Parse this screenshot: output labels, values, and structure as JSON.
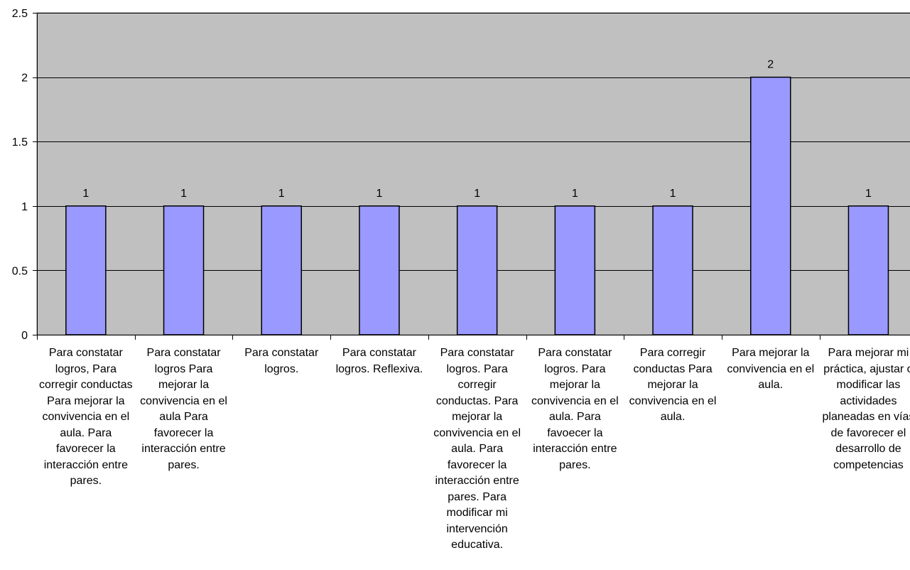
{
  "chart_data": {
    "type": "bar",
    "title": "",
    "xlabel": "",
    "ylabel": "",
    "ylim": [
      0,
      2.5
    ],
    "yticks": [
      "0",
      "0.5",
      "1",
      "1.5",
      "2",
      "2.5"
    ],
    "grid": true,
    "legend": "none",
    "colors": {
      "plot_background": "#c0c0c0",
      "bar_fill": "#9999ff",
      "bar_stroke": "#000000",
      "gridline": "#000000"
    },
    "categories": [
      "Para constatar logros, Para corregir conductas Para mejorar la convivencia en el aula. Para favorecer la interacción entre pares.",
      "Para constatar logros Para mejorar la convivencia en el aula Para favorecer la interacción entre pares.",
      "Para constatar logros.",
      "Para constatar logros. Reflexiva.",
      "Para constatar logros. Para corregir conductas. Para mejorar la convivencia en el aula. Para favorecer la interacción entre pares. Para modificar mi intervención educativa.",
      "Para constatar logros. Para mejorar la convivencia en el aula. Para favoecer  la interacción entre pares.",
      "Para corregir conductas Para mejorar la convivencia en el aula.",
      "Para mejorar la convivencia en el aula.",
      "Para mejorar mi práctica, ajustar o modificar las actividades planeadas en vías de favorecer el desarrollo de competencias"
    ],
    "values": [
      1,
      1,
      1,
      1,
      1,
      1,
      1,
      2,
      1
    ],
    "data_labels": [
      "1",
      "1",
      "1",
      "1",
      "1",
      "1",
      "1",
      "2",
      "1"
    ]
  }
}
